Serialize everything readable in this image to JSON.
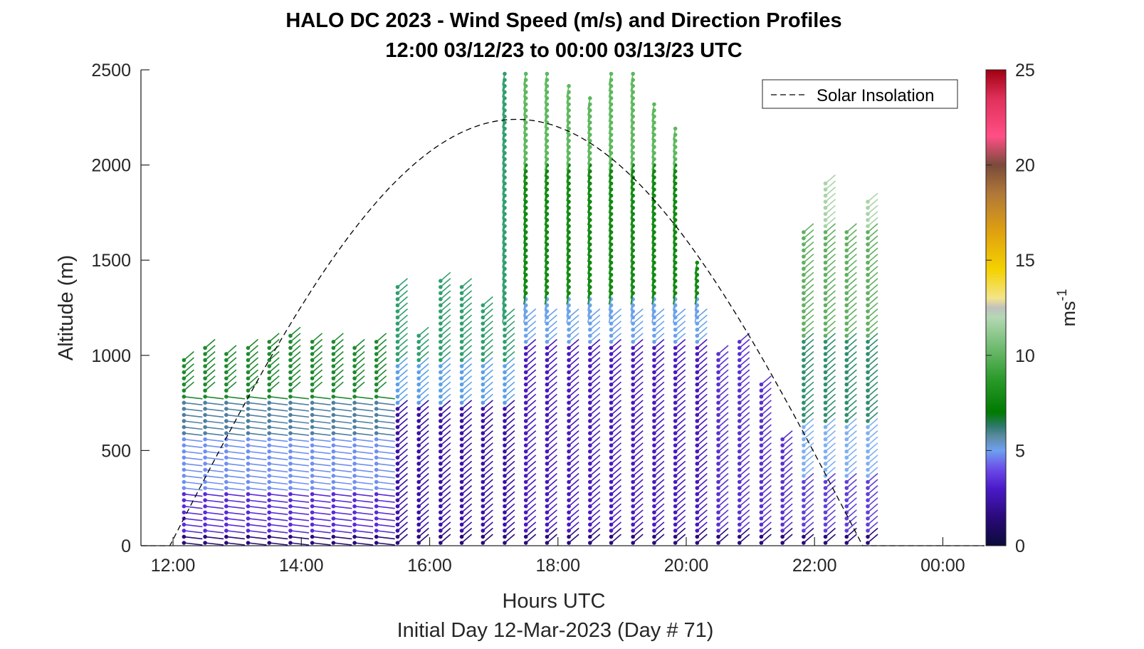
{
  "chart_data": {
    "type": "scatter",
    "title": "HALO DC 2023 - Wind Speed (m/s) and Direction Profiles",
    "subtitle": "12:00 03/12/23 to 00:00 03/13/23  UTC",
    "xlabel": "Hours UTC",
    "xlabel2": "Initial Day 12-Mar-2023 (Day # 71)",
    "ylabel": "Altitude (m)",
    "colorbar_label": "ms",
    "colorbar_label_exp": "-1",
    "xlim": [
      11.5,
      24.65
    ],
    "ylim": [
      0,
      2500
    ],
    "x_ticks": [
      12,
      14,
      16,
      18,
      20,
      22,
      24
    ],
    "x_tick_labels": [
      "12:00",
      "14:00",
      "16:00",
      "18:00",
      "20:00",
      "22:00",
      "00:00"
    ],
    "y_ticks": [
      0,
      500,
      1000,
      1500,
      2000,
      2500
    ],
    "y_tick_labels": [
      "0",
      "500",
      "1000",
      "1500",
      "2000",
      "2500"
    ],
    "colorbar_ticks": [
      0,
      5,
      10,
      15,
      20,
      25
    ],
    "colorbar_range": [
      0,
      25
    ],
    "legend": {
      "label": "Solar Insolation",
      "position": "top-right"
    },
    "solar_insolation": {
      "style": "dashed",
      "color": "#000000",
      "sunrise_hour": 11.95,
      "sunset_hour": 22.75,
      "peak_hour": 17.35,
      "peak_altitude": 2240
    },
    "profiles": [
      {
        "hour": 12.17,
        "top": 980
      },
      {
        "hour": 12.5,
        "top": 1050
      },
      {
        "hour": 12.83,
        "top": 1030
      },
      {
        "hour": 13.17,
        "top": 1060
      },
      {
        "hour": 13.5,
        "top": 1090
      },
      {
        "hour": 13.83,
        "top": 1120
      },
      {
        "hour": 14.17,
        "top": 1090
      },
      {
        "hour": 14.5,
        "top": 1090
      },
      {
        "hour": 14.83,
        "top": 1060
      },
      {
        "hour": 15.17,
        "top": 1080
      },
      {
        "hour": 15.5,
        "top": 1360
      },
      {
        "hour": 15.83,
        "top": 1130
      },
      {
        "hour": 16.17,
        "top": 1400
      },
      {
        "hour": 16.5,
        "top": 1370
      },
      {
        "hour": 16.83,
        "top": 1290
      },
      {
        "hour": 17.17,
        "top": 2500
      },
      {
        "hour": 17.5,
        "top": 2500
      },
      {
        "hour": 17.83,
        "top": 2500
      },
      {
        "hour": 18.17,
        "top": 2420
      },
      {
        "hour": 18.5,
        "top": 2370
      },
      {
        "hour": 18.83,
        "top": 2500
      },
      {
        "hour": 19.17,
        "top": 2500
      },
      {
        "hour": 19.5,
        "top": 2320
      },
      {
        "hour": 19.83,
        "top": 2220
      },
      {
        "hour": 20.17,
        "top": 1500
      },
      {
        "hour": 20.5,
        "top": 1020
      },
      {
        "hour": 20.83,
        "top": 1080
      },
      {
        "hour": 21.17,
        "top": 860
      },
      {
        "hour": 21.5,
        "top": 580
      },
      {
        "hour": 21.83,
        "top": 1660
      },
      {
        "hour": 22.17,
        "top": 1910
      },
      {
        "hour": 22.5,
        "top": 1660
      },
      {
        "hour": 22.83,
        "top": 1820
      }
    ]
  }
}
